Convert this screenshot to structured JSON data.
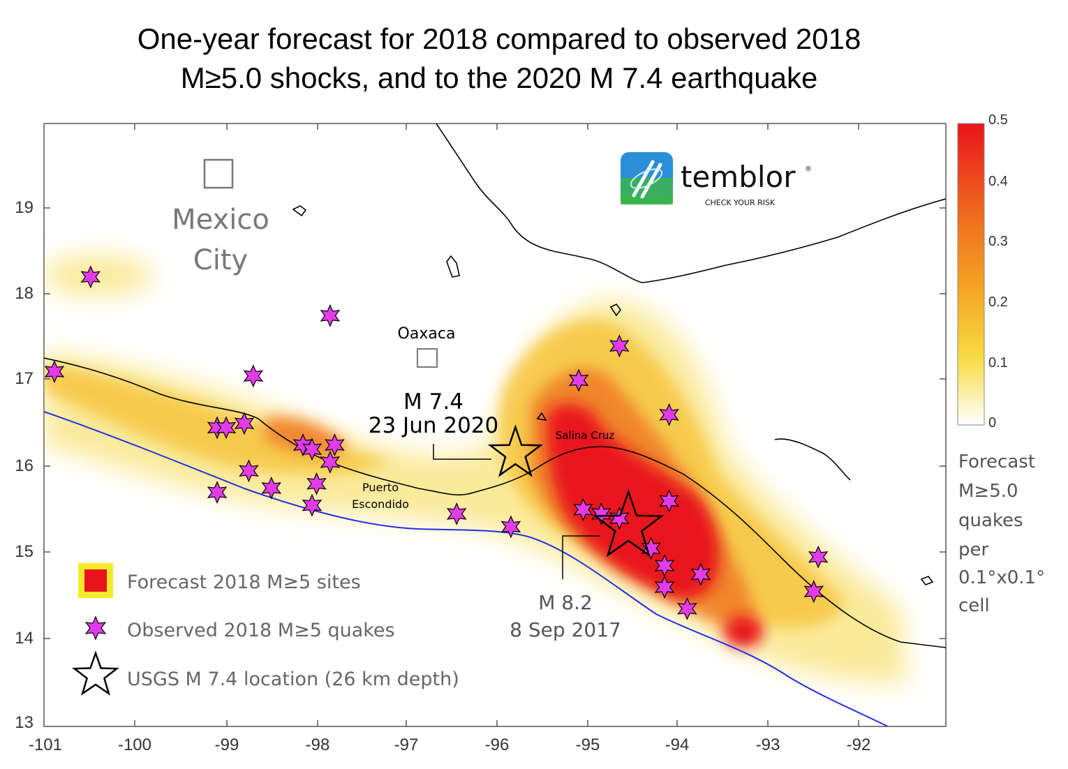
{
  "title": {
    "line1": "One-year forecast for 2018 compared to observed 2018",
    "line2": "M≥5.0 shocks, and to the 2020 M 7.4 earthquake"
  },
  "axes": {
    "x_ticks": [
      "-101",
      "-100",
      "-99",
      "-98",
      "-97",
      "-96",
      "-95",
      "-94",
      "-93",
      "-92"
    ],
    "y_ticks": [
      "19",
      "18",
      "17",
      "16",
      "15",
      "14",
      "13"
    ],
    "xlim": [
      -101.1,
      -91.2
    ],
    "ylim": [
      13.0,
      20.0
    ]
  },
  "labels": {
    "mexico_city_1": "Mexico",
    "mexico_city_2": "City",
    "oaxaca": "Oaxaca",
    "salina_cruz": "Salina Cruz",
    "puerto_1": "Puerto",
    "puerto_2": "Escondido",
    "m74_1": "M 7.4",
    "m74_2": "23 Jun 2020",
    "m82_1": "M 8.2",
    "m82_2": "8 Sep 2017"
  },
  "logo": {
    "name": "temblor",
    "tagline": "CHECK YOUR RISK",
    "reg": "®"
  },
  "legend": {
    "forecast": "Forecast 2018 M≥5 sites",
    "observed": "Observed 2018 M≥5 quakes",
    "usgs": "USGS M 7.4 location (26 km depth)"
  },
  "colorbar": {
    "ticks": [
      "0.5",
      "0.4",
      "0.3",
      "0.2",
      "0.1",
      "0"
    ],
    "label": [
      "Forecast",
      "M≥5.0",
      "quakes",
      "per",
      "0.1°x0.1°",
      "cell"
    ]
  },
  "colors": {
    "forecast_high": "#e8141c",
    "forecast_low": "#f5d22a",
    "star_fill": "#e23ce8",
    "trench": "#1f2fe0",
    "coast": "#000000"
  },
  "observed_quakes": [
    {
      "lon": -100.5,
      "lat": 18.2
    },
    {
      "lon": -97.85,
      "lat": 17.75
    },
    {
      "lon": -100.9,
      "lat": 17.1
    },
    {
      "lon": -98.7,
      "lat": 17.05
    },
    {
      "lon": -94.65,
      "lat": 17.4
    },
    {
      "lon": -95.1,
      "lat": 17.0
    },
    {
      "lon": -94.1,
      "lat": 16.6
    },
    {
      "lon": -98.8,
      "lat": 16.5
    },
    {
      "lon": -99.1,
      "lat": 16.45
    },
    {
      "lon": -99.0,
      "lat": 16.45
    },
    {
      "lon": -98.15,
      "lat": 16.25
    },
    {
      "lon": -98.05,
      "lat": 16.2
    },
    {
      "lon": -97.8,
      "lat": 16.25
    },
    {
      "lon": -97.85,
      "lat": 16.05
    },
    {
      "lon": -98.75,
      "lat": 15.95
    },
    {
      "lon": -98.5,
      "lat": 15.75
    },
    {
      "lon": -99.1,
      "lat": 15.7
    },
    {
      "lon": -98.0,
      "lat": 15.8
    },
    {
      "lon": -98.05,
      "lat": 15.55
    },
    {
      "lon": -96.45,
      "lat": 15.45
    },
    {
      "lon": -95.85,
      "lat": 15.3
    },
    {
      "lon": -95.05,
      "lat": 15.5
    },
    {
      "lon": -94.85,
      "lat": 15.45
    },
    {
      "lon": -94.65,
      "lat": 15.4
    },
    {
      "lon": -94.1,
      "lat": 15.6
    },
    {
      "lon": -94.3,
      "lat": 15.05
    },
    {
      "lon": -94.15,
      "lat": 14.85
    },
    {
      "lon": -93.75,
      "lat": 14.75
    },
    {
      "lon": -94.15,
      "lat": 14.6
    },
    {
      "lon": -93.9,
      "lat": 14.35
    },
    {
      "lon": -92.45,
      "lat": 14.95
    },
    {
      "lon": -92.5,
      "lat": 14.55
    }
  ],
  "usgs_m74": {
    "lon": -95.8,
    "lat": 16.15
  },
  "usgs_m82": {
    "lon": -94.55,
    "lat": 15.3
  }
}
